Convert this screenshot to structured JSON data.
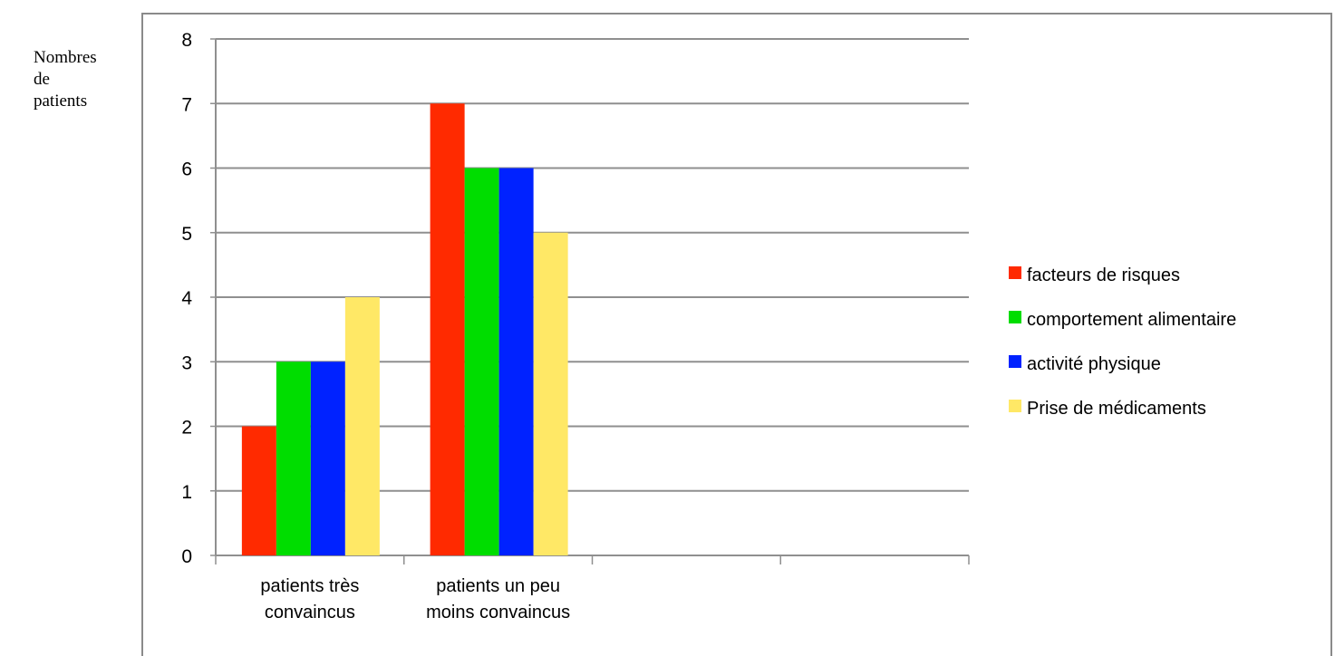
{
  "chart_data": {
    "type": "bar",
    "ylabel_lines": [
      "Nombres",
      "de",
      "patients"
    ],
    "xlabel": "",
    "title": "",
    "categories": [
      [
        "patients très",
        "convaincus"
      ],
      [
        "patients un peu",
        "moins convaincus"
      ],
      [],
      []
    ],
    "series": [
      {
        "name": "facteurs de risques",
        "color": "#ff2a00",
        "values": [
          2,
          7,
          null,
          null
        ]
      },
      {
        "name": "comportement alimentaire",
        "color": "#00dd00",
        "values": [
          3,
          6,
          null,
          null
        ]
      },
      {
        "name": "activité physique",
        "color": "#0022ff",
        "values": [
          3,
          6,
          null,
          null
        ]
      },
      {
        "name": "Prise de médicaments",
        "color": "#ffe866",
        "values": [
          4,
          5,
          null,
          null
        ]
      }
    ],
    "ylim": [
      0,
      8
    ],
    "yticks": [
      0,
      1,
      2,
      3,
      4,
      5,
      6,
      7,
      8
    ],
    "grid": true,
    "legend_position": "right"
  }
}
